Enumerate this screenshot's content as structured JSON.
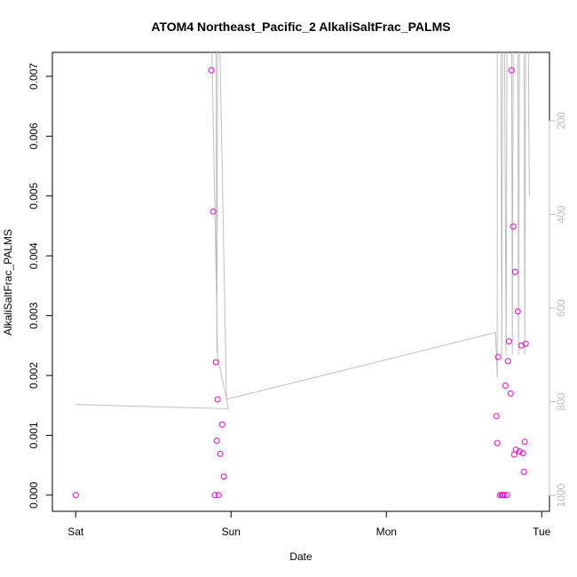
{
  "chart_data": {
    "type": "scatter",
    "title": "ATOM4 Northeast_Pacific_2 AlkaliSaltFrac_PALMS",
    "xlabel": "Date",
    "ylabel": "AlkaliSaltFrac_PALMS",
    "x_ticks": [
      {
        "label": "Sat",
        "value": 0
      },
      {
        "label": "Sun",
        "value": 1
      },
      {
        "label": "Mon",
        "value": 2
      },
      {
        "label": "Tue",
        "value": 3
      }
    ],
    "xlim": [
      -0.15,
      3.05
    ],
    "ylim": [
      -0.00027,
      0.0074
    ],
    "y_ticks": [
      {
        "label": "0.000",
        "value": 0.0
      },
      {
        "label": "0.001",
        "value": 0.001
      },
      {
        "label": "0.002",
        "value": 0.002
      },
      {
        "label": "0.003",
        "value": 0.003
      },
      {
        "label": "0.004",
        "value": 0.004
      },
      {
        "label": "0.005",
        "value": 0.005
      },
      {
        "label": "0.006",
        "value": 0.006
      },
      {
        "label": "0.007",
        "value": 0.007
      }
    ],
    "y2_ticks": [
      {
        "label": "200",
        "value": 200
      },
      {
        "label": "400",
        "value": 400
      },
      {
        "label": "600",
        "value": 600
      },
      {
        "label": "800",
        "value": 800
      },
      {
        "label": "1000",
        "value": 1000
      }
    ],
    "y2lim_top_bottom": [
      54,
      1034
    ],
    "grid": false,
    "point_color": "#ff00cc",
    "line_color": "#bebebe",
    "right_axis_color": "#bebebe",
    "series": [
      {
        "points": [
          [
            0.0,
            0.0
          ],
          [
            0.874,
            0.0071
          ],
          [
            0.886,
            0.00474
          ],
          [
            0.897,
            0.0
          ],
          [
            0.903,
            0.00222
          ],
          [
            0.909,
            0.00091
          ],
          [
            0.914,
            0.0016
          ],
          [
            0.92,
            0.0
          ],
          [
            0.931,
            0.00069
          ],
          [
            0.943,
            0.00118
          ],
          [
            0.954,
            0.00031
          ],
          [
            2.709,
            0.00132
          ],
          [
            2.714,
            0.00087
          ],
          [
            2.72,
            0.00231
          ],
          [
            2.731,
            0.0
          ],
          [
            2.743,
            0.0
          ],
          [
            2.749,
            0.0
          ],
          [
            2.76,
            0.0
          ],
          [
            2.766,
            0.00183
          ],
          [
            2.777,
            0.0
          ],
          [
            2.783,
            0.00224
          ],
          [
            2.789,
            0.00257
          ],
          [
            2.8,
            0.0017
          ],
          [
            2.806,
            0.0071
          ],
          [
            2.817,
            0.00449
          ],
          [
            2.823,
            0.00068
          ],
          [
            2.829,
            0.00373
          ],
          [
            2.834,
            0.00076
          ],
          [
            2.846,
            0.00307
          ],
          [
            2.857,
            0.00073
          ],
          [
            2.869,
            0.0025
          ],
          [
            2.88,
            0.0007
          ],
          [
            2.886,
            0.00039
          ],
          [
            2.891,
            0.00089
          ],
          [
            2.897,
            0.00253
          ]
        ]
      },
      {
        "axis": "right",
        "points": [
          [
            0.0,
            806
          ],
          [
            0.983,
            815
          ],
          [
            0.971,
            795
          ],
          [
            0.914,
            705
          ],
          [
            0.874,
            0
          ],
          [
            0.886,
            0
          ],
          [
            0.891,
            0
          ],
          [
            0.903,
            0
          ],
          [
            0.909,
            695
          ],
          [
            0.914,
            0
          ],
          [
            0.926,
            0
          ],
          [
            0.971,
            795
          ],
          [
            2.703,
            652
          ],
          [
            2.714,
            748
          ],
          [
            2.714,
            0
          ],
          [
            2.726,
            0
          ],
          [
            2.737,
            0
          ],
          [
            2.743,
            700
          ],
          [
            2.749,
            0
          ],
          [
            2.76,
            0
          ],
          [
            2.771,
            700
          ],
          [
            2.777,
            0
          ],
          [
            2.789,
            0
          ],
          [
            2.8,
            0
          ],
          [
            2.806,
            0
          ],
          [
            2.811,
            700
          ],
          [
            2.817,
            0
          ],
          [
            2.829,
            0
          ],
          [
            2.834,
            0
          ],
          [
            2.846,
            0
          ],
          [
            2.851,
            700
          ],
          [
            2.857,
            0
          ],
          [
            2.869,
            0
          ],
          [
            2.874,
            0
          ],
          [
            2.886,
            0
          ],
          [
            2.891,
            700
          ],
          [
            2.897,
            0
          ],
          [
            2.909,
            0
          ],
          [
            2.914,
            0
          ],
          [
            2.92,
            360
          ]
        ]
      }
    ]
  }
}
